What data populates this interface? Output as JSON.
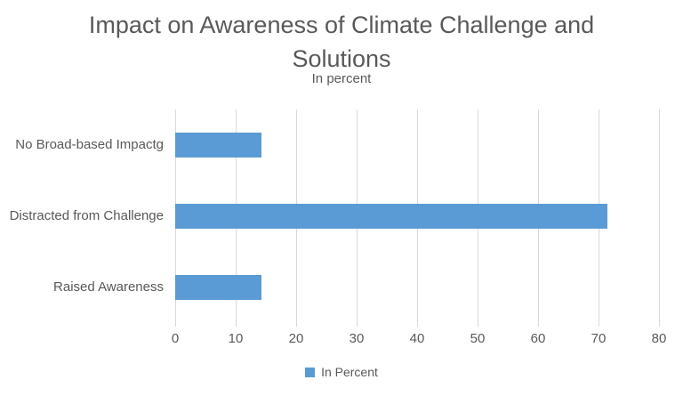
{
  "colors": {
    "bar": "#5B9BD5",
    "gridline": "#D9D9D9",
    "axis_line": "#D9D9D9",
    "text": "#595959",
    "background": "#FFFFFF"
  },
  "chart_data": {
    "type": "bar",
    "orientation": "horizontal",
    "title": "Impact on Awareness of Climate Challenge and Solutions",
    "title_lines": [
      "Impact on Awareness of Climate Challenge and",
      "Solutions"
    ],
    "subtitle": "In percent",
    "categories": [
      "No Broad-based Impactg",
      "Distracted from Challenge",
      "Raised Awareness"
    ],
    "series": [
      {
        "name": "In Percent",
        "values": [
          14.3,
          71.4,
          14.3
        ]
      }
    ],
    "xlabel": "",
    "ylabel": "",
    "xlim": [
      0,
      80
    ],
    "x_tick_step": 10,
    "x_tick_labels": [
      "0",
      "10",
      "20",
      "30",
      "40",
      "50",
      "60",
      "70",
      "80"
    ],
    "grid": "vertical-gridlines-on",
    "legend": {
      "position": "bottom-center",
      "entries": [
        "In Percent"
      ]
    }
  }
}
